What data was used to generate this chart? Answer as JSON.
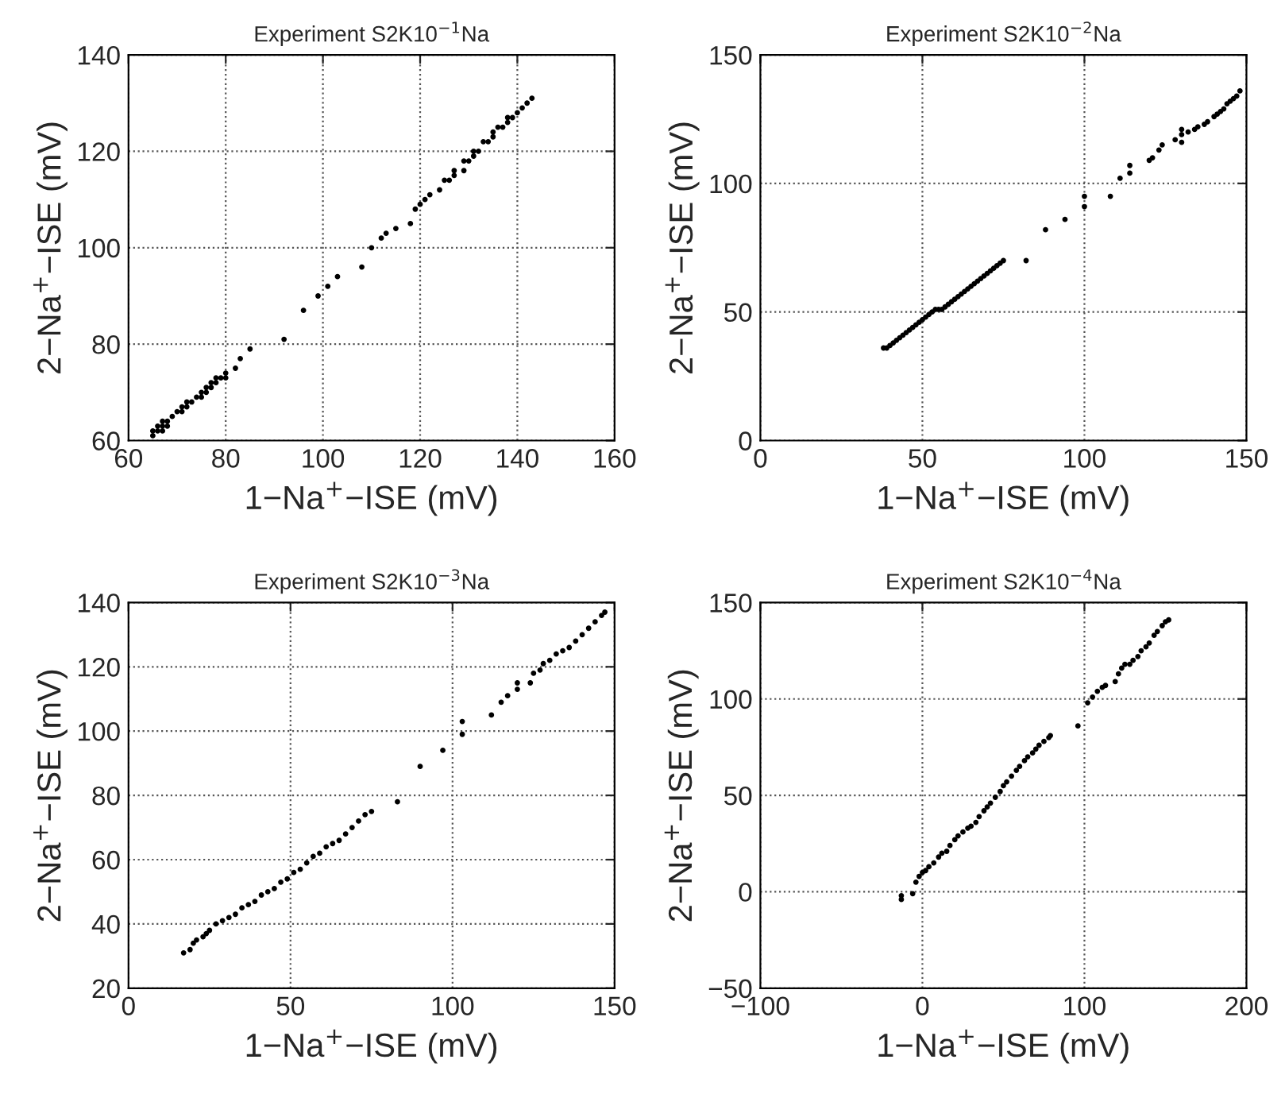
{
  "chart_data": [
    {
      "type": "scatter",
      "title": "Experiment S2K10$^{−1}$Na",
      "xlabel": "1−Na$^{+}$−ISE (mV)",
      "ylabel": "2−Na$^{+}$−ISE (mV)",
      "color": "#000000",
      "marker": "circle",
      "grid": true,
      "xlim": [
        60,
        160
      ],
      "ylim": [
        60,
        140
      ],
      "xticks": [
        60,
        80,
        100,
        120,
        140,
        160
      ],
      "yticks": [
        60,
        80,
        100,
        120,
        140
      ],
      "x": [
        65,
        65,
        66,
        66,
        67,
        67,
        67,
        68,
        68,
        69,
        70,
        71,
        71,
        72,
        72,
        73,
        74,
        75,
        75,
        76,
        76,
        77,
        77,
        78,
        78,
        79,
        80,
        80,
        82,
        83,
        85,
        92,
        96,
        99,
        101,
        103,
        108,
        110,
        112,
        113,
        115,
        118,
        119,
        120,
        121,
        122,
        124,
        125,
        126,
        127,
        127,
        129,
        129,
        130,
        131,
        131,
        132,
        133,
        134,
        135,
        135,
        136,
        137,
        138,
        138,
        139,
        140,
        141,
        142,
        143
      ],
      "values": [
        61,
        62,
        62,
        63,
        62,
        63,
        64,
        63,
        64,
        65,
        66,
        66,
        67,
        67,
        68,
        68,
        69,
        69,
        70,
        70,
        71,
        71,
        72,
        72,
        73,
        73,
        73,
        74,
        75,
        77,
        79,
        81,
        87,
        90,
        92,
        94,
        96,
        100,
        102,
        103,
        104,
        105,
        108,
        109,
        110,
        111,
        112,
        114,
        114,
        115,
        116,
        116,
        118,
        118,
        119,
        120,
        120,
        122,
        122,
        123,
        124,
        125,
        125,
        126,
        127,
        127,
        128,
        129,
        130,
        131
      ]
    },
    {
      "type": "scatter",
      "title": "Experiment S2K10$^{−2}$Na",
      "xlabel": "1−Na$^{+}$−ISE (mV)",
      "ylabel": "2−Na$^{+}$−ISE (mV)",
      "color": "#000000",
      "marker": "circle",
      "grid": true,
      "xlim": [
        0,
        150
      ],
      "ylim": [
        0,
        150
      ],
      "xticks": [
        0,
        50,
        100,
        150
      ],
      "yticks": [
        0,
        50,
        100,
        150
      ],
      "x": [
        38,
        39,
        40,
        41,
        42,
        43,
        44,
        45,
        46,
        47,
        48,
        49,
        50,
        51,
        52,
        53,
        54,
        55,
        56,
        57,
        58,
        59,
        60,
        61,
        62,
        63,
        64,
        65,
        66,
        67,
        68,
        69,
        70,
        71,
        72,
        73,
        74,
        75,
        82,
        88,
        94,
        100,
        100,
        108,
        111,
        114,
        114,
        120,
        121,
        123,
        124,
        128,
        130,
        130,
        130,
        132,
        134,
        135,
        137,
        138,
        140,
        141,
        142,
        143,
        144,
        145,
        146,
        147,
        148
      ],
      "values": [
        36,
        36,
        37,
        38,
        39,
        40,
        41,
        42,
        43,
        44,
        45,
        46,
        47,
        48,
        49,
        50,
        51,
        51,
        51,
        52,
        53,
        54,
        55,
        56,
        57,
        58,
        59,
        60,
        61,
        62,
        63,
        64,
        65,
        66,
        67,
        68,
        69,
        70,
        70,
        82,
        86,
        91,
        95,
        95,
        102,
        104,
        107,
        109,
        110,
        113,
        115,
        117,
        116,
        119,
        121,
        120,
        121,
        122,
        123,
        124,
        126,
        127,
        128,
        129,
        131,
        132,
        133,
        134,
        136
      ]
    },
    {
      "type": "scatter",
      "title": "Experiment S2K10$^{−3}$Na",
      "xlabel": "1−Na$^{+}$−ISE (mV)",
      "ylabel": "2−Na$^{+}$−ISE (mV)",
      "color": "#000000",
      "marker": "circle",
      "grid": true,
      "xlim": [
        0,
        150
      ],
      "ylim": [
        20,
        140
      ],
      "xticks": [
        0,
        50,
        100,
        150
      ],
      "yticks": [
        20,
        40,
        60,
        80,
        100,
        120,
        140
      ],
      "x": [
        17,
        19,
        20,
        21,
        23,
        24,
        25,
        27,
        29,
        31,
        33,
        35,
        37,
        39,
        41,
        43,
        45,
        47,
        49,
        51,
        53,
        55,
        57,
        59,
        61,
        63,
        65,
        67,
        69,
        71,
        73,
        75,
        83,
        90,
        97,
        103,
        103,
        112,
        115,
        117,
        120,
        120,
        124,
        125,
        127,
        128,
        130,
        132,
        134,
        136,
        138,
        140,
        142,
        144,
        146,
        147
      ],
      "values": [
        31,
        32,
        34,
        35,
        36,
        37,
        38,
        40,
        41,
        42,
        43,
        45,
        46,
        47,
        49,
        50,
        51,
        53,
        54,
        56,
        57,
        59,
        61,
        62,
        64,
        65,
        66,
        68,
        70,
        72,
        74,
        75,
        78,
        89,
        94,
        99,
        103,
        105,
        109,
        111,
        113,
        115,
        115,
        118,
        119,
        121,
        122,
        124,
        125,
        126,
        128,
        130,
        132,
        134,
        136,
        137
      ]
    },
    {
      "type": "scatter",
      "title": "Experiment S2K10$^{−4}$Na",
      "xlabel": "1−Na$^{+}$−ISE (mV)",
      "ylabel": "2−Na$^{+}$−ISE (mV)",
      "color": "#000000",
      "marker": "circle",
      "grid": true,
      "xlim": [
        -100,
        200
      ],
      "ylim": [
        -50,
        150
      ],
      "xticks": [
        {
          "value": -100,
          "label": "−100"
        },
        0,
        100,
        200
      ],
      "yticks": [
        {
          "value": -50,
          "label": "−50"
        },
        0,
        50,
        100,
        150
      ],
      "x": [
        -13,
        -13,
        -6,
        -4,
        -2,
        0,
        2,
        4,
        7,
        10,
        12,
        15,
        17,
        20,
        22,
        25,
        28,
        30,
        33,
        35,
        38,
        40,
        42,
        45,
        48,
        50,
        52,
        55,
        58,
        60,
        63,
        65,
        68,
        70,
        72,
        75,
        78,
        79,
        96,
        102,
        105,
        108,
        111,
        113,
        119,
        121,
        123,
        125,
        128,
        130,
        133,
        135,
        138,
        140,
        143,
        145,
        148,
        150,
        152
      ],
      "values": [
        -4,
        -2,
        -1,
        5,
        8,
        10,
        11,
        13,
        15,
        18,
        20,
        21,
        24,
        27,
        29,
        31,
        33,
        34,
        36,
        39,
        42,
        44,
        46,
        49,
        52,
        55,
        57,
        60,
        63,
        65,
        68,
        70,
        72,
        74,
        76,
        78,
        80,
        81,
        86,
        98,
        101,
        104,
        106,
        107,
        109,
        113,
        116,
        118,
        118,
        120,
        122,
        125,
        127,
        129,
        133,
        135,
        138,
        140,
        141
      ]
    }
  ]
}
